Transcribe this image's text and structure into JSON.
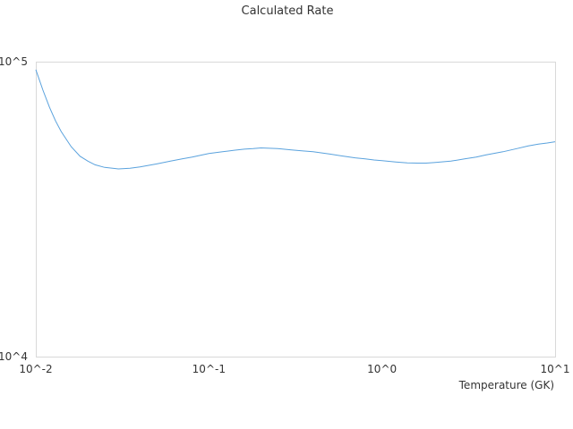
{
  "chart_data": {
    "type": "line",
    "title": "Calculated Rate",
    "xlabel": "Temperature (GK)",
    "ylabel": "",
    "x_scale": "log",
    "y_scale": "log",
    "xlim": [
      0.01,
      10
    ],
    "ylim": [
      10000,
      100000
    ],
    "x_tick_labels": [
      "10^-2",
      "10^-1",
      "10^0",
      "10^1"
    ],
    "y_tick_labels": [
      "10^4",
      "10^5"
    ],
    "grid": false,
    "series": [
      {
        "color": "#5aa2dd",
        "x": [
          0.01,
          0.011,
          0.012,
          0.013,
          0.014,
          0.016,
          0.018,
          0.02,
          0.022,
          0.025,
          0.03,
          0.035,
          0.04,
          0.05,
          0.06,
          0.07,
          0.08,
          0.09,
          0.1,
          0.12,
          0.14,
          0.16,
          0.18,
          0.2,
          0.25,
          0.3,
          0.35,
          0.4,
          0.5,
          0.6,
          0.7,
          0.8,
          0.9,
          1.0,
          1.2,
          1.4,
          1.6,
          1.8,
          2.0,
          2.5,
          3.0,
          3.5,
          4.0,
          5.0,
          6.0,
          7.0,
          8.0,
          9.0,
          10.0
        ],
        "y": [
          94000,
          80000,
          70000,
          63000,
          58000,
          51500,
          47800,
          46000,
          44700,
          43800,
          43300,
          43500,
          44000,
          45000,
          46000,
          46800,
          47500,
          48200,
          48800,
          49500,
          50100,
          50500,
          50700,
          51000,
          50700,
          50200,
          49800,
          49500,
          48600,
          47800,
          47200,
          46800,
          46400,
          46200,
          45700,
          45400,
          45300,
          45300,
          45500,
          46000,
          46800,
          47500,
          48300,
          49500,
          50700,
          51800,
          52500,
          53000,
          53500
        ]
      }
    ]
  }
}
